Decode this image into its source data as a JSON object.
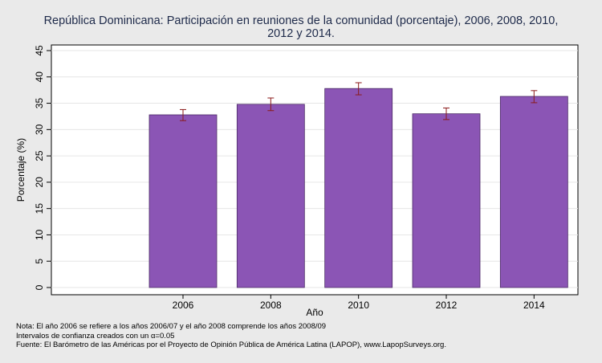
{
  "chart_data": {
    "type": "bar",
    "title": "República Dominicana: Participación en reuniones de la comunidad (porcentaje), 2006, 2008, 2010, 2012 y 2014.",
    "title_lines": [
      "República Dominicana: Participación en reuniones de la comunidad (porcentaje), 2006, 2008, 2010,",
      "2012 y 2014."
    ],
    "xlabel": "Año",
    "ylabel": "Porcentaje (%)",
    "categories": [
      "2006",
      "2008",
      "2010",
      "2012",
      "2014"
    ],
    "values": [
      32.8,
      34.8,
      37.8,
      33.0,
      36.3
    ],
    "ci_low": [
      31.7,
      33.6,
      36.6,
      31.9,
      35.1
    ],
    "ci_high": [
      33.8,
      36.0,
      38.9,
      34.1,
      37.4
    ],
    "ylim": [
      0,
      45
    ],
    "yticks": [
      0,
      5,
      10,
      15,
      20,
      25,
      30,
      35,
      40,
      45
    ],
    "grid": true,
    "colors": {
      "bar": "#8b55b5",
      "bar_edge": "#4b2a66",
      "error_bar": "#8b1a1a",
      "grid": "#e6e6e6",
      "plot_bg": "#ffffff",
      "page_bg": "#eaeaea"
    }
  },
  "notes": [
    "Nota: El año 2006 se refiere a los años 2006/07 y el año 2008 comprende los años 2008/09",
    "Intervalos de confianza creados con un α=0.05",
    "Fuente: El Barómetro de las Américas por el Proyecto de Opinión Pública de América Latina (LAPOP), www.LapopSurveys.org."
  ]
}
